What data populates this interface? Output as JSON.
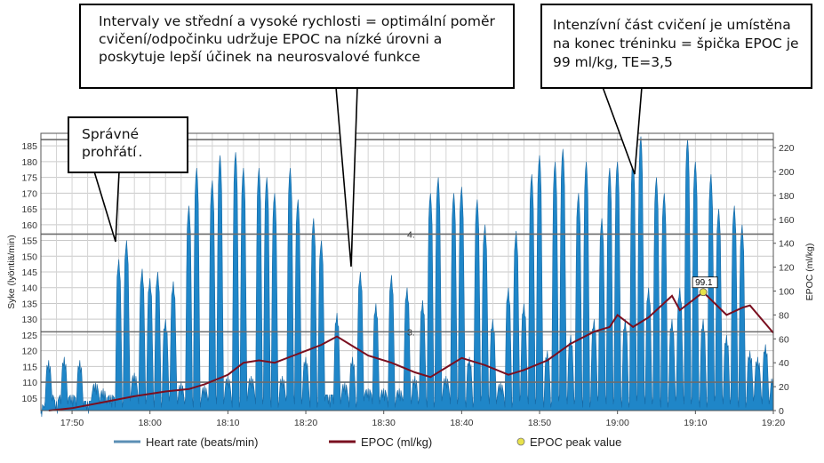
{
  "chart_data": {
    "type": "area",
    "x_ticks": [
      "17:50",
      "18:00",
      "18:10",
      "18:20",
      "18:30",
      "18:40",
      "18:50",
      "19:00",
      "19:10",
      "19:20"
    ],
    "x_range": [
      "17:46",
      "19:20"
    ],
    "y_left": {
      "label": "Syke (lyöntiä/min)",
      "ticks": [
        105,
        110,
        115,
        120,
        125,
        130,
        135,
        140,
        145,
        150,
        155,
        160,
        165,
        170,
        175,
        180,
        185
      ],
      "range": [
        101,
        189
      ]
    },
    "y_right": {
      "label": "EPOC (ml/kg)",
      "ticks": [
        0,
        20,
        40,
        60,
        80,
        100,
        120,
        140,
        160,
        180,
        200,
        220
      ],
      "range": [
        0,
        232
      ]
    },
    "zone_lines": [
      {
        "value": 110,
        "label": ""
      },
      {
        "value": 126,
        "label": "3."
      },
      {
        "value": 157,
        "label": "4."
      },
      {
        "value": 187,
        "label": ""
      }
    ],
    "series": [
      {
        "name": "Heart rate (beats/min)",
        "color": "#1f86c8",
        "axis": "left",
        "peaks": [
          [
            "17:46",
            103
          ],
          [
            "17:47",
            117
          ],
          [
            "17:48",
            104
          ],
          [
            "17:49",
            118
          ],
          [
            "17:50",
            106
          ],
          [
            "17:51",
            117
          ],
          [
            "17:52",
            104
          ],
          [
            "17:53",
            110
          ],
          [
            "17:54",
            108
          ],
          [
            "17:55",
            106
          ],
          [
            "17:56",
            149
          ],
          [
            "17:57",
            155
          ],
          [
            "17:58",
            113
          ],
          [
            "17:59",
            146
          ],
          [
            "18:00",
            143
          ],
          [
            "18:01",
            145
          ],
          [
            "18:02",
            130
          ],
          [
            "18:03",
            142
          ],
          [
            "18:04",
            110
          ],
          [
            "18:05",
            166
          ],
          [
            "18:06",
            178
          ],
          [
            "18:07",
            109
          ],
          [
            "18:08",
            174
          ],
          [
            "18:09",
            182
          ],
          [
            "18:10",
            112
          ],
          [
            "18:11",
            183
          ],
          [
            "18:12",
            178
          ],
          [
            "18:13",
            112
          ],
          [
            "18:14",
            178
          ],
          [
            "18:15",
            175
          ],
          [
            "18:16",
            170
          ],
          [
            "18:17",
            112
          ],
          [
            "18:18",
            178
          ],
          [
            "18:19",
            168
          ],
          [
            "18:20",
            118
          ],
          [
            "18:21",
            162
          ],
          [
            "18:22",
            155
          ],
          [
            "18:23",
            106
          ],
          [
            "18:24",
            132
          ],
          [
            "18:25",
            110
          ],
          [
            "18:26",
            118
          ],
          [
            "18:27",
            145
          ],
          [
            "18:28",
            108
          ],
          [
            "18:29",
            135
          ],
          [
            "18:30",
            108
          ],
          [
            "18:31",
            144
          ],
          [
            "18:32",
            108
          ],
          [
            "18:33",
            140
          ],
          [
            "18:34",
            112
          ],
          [
            "18:35",
            136
          ],
          [
            "18:36",
            170
          ],
          [
            "18:37",
            175
          ],
          [
            "18:38",
            112
          ],
          [
            "18:39",
            170
          ],
          [
            "18:40",
            172
          ],
          [
            "18:41",
            118
          ],
          [
            "18:42",
            168
          ],
          [
            "18:43",
            160
          ],
          [
            "18:44",
            130
          ],
          [
            "18:45",
            110
          ],
          [
            "18:46",
            140
          ],
          [
            "18:47",
            158
          ],
          [
            "18:48",
            135
          ],
          [
            "18:49",
            176
          ],
          [
            "18:50",
            182
          ],
          [
            "18:51",
            120
          ],
          [
            "18:52",
            180
          ],
          [
            "18:53",
            184
          ],
          [
            "18:54",
            125
          ],
          [
            "18:55",
            170
          ],
          [
            "18:56",
            180
          ],
          [
            "18:57",
            130
          ],
          [
            "18:58",
            162
          ],
          [
            "18:59",
            178
          ],
          [
            "19:00",
            180
          ],
          [
            "19:01",
            130
          ],
          [
            "19:02",
            182
          ],
          [
            "19:03",
            188
          ],
          [
            "19:04",
            140
          ],
          [
            "19:05",
            175
          ],
          [
            "19:06",
            170
          ],
          [
            "19:07",
            130
          ],
          [
            "19:08",
            140
          ],
          [
            "19:09",
            187
          ],
          [
            "19:10",
            180
          ],
          [
            "19:11",
            130
          ],
          [
            "19:12",
            176
          ],
          [
            "19:13",
            165
          ],
          [
            "19:14",
            125
          ],
          [
            "19:15",
            166
          ],
          [
            "19:16",
            160
          ],
          [
            "19:17",
            120
          ],
          [
            "19:18",
            118
          ],
          [
            "19:19",
            122
          ],
          [
            "19:20",
            112
          ]
        ]
      },
      {
        "name": "EPOC (ml/kg)",
        "color": "#7a0f1f",
        "axis": "right",
        "points": [
          [
            "17:47",
            0
          ],
          [
            "17:50",
            2
          ],
          [
            "17:54",
            7
          ],
          [
            "17:58",
            12
          ],
          [
            "18:02",
            16
          ],
          [
            "18:05",
            18
          ],
          [
            "18:07",
            22
          ],
          [
            "18:10",
            30
          ],
          [
            "18:12",
            40
          ],
          [
            "18:14",
            42
          ],
          [
            "18:16",
            40
          ],
          [
            "18:18",
            45
          ],
          [
            "18:20",
            50
          ],
          [
            "18:22",
            55
          ],
          [
            "18:24",
            62
          ],
          [
            "18:26",
            54
          ],
          [
            "18:28",
            46
          ],
          [
            "18:31",
            40
          ],
          [
            "18:34",
            32
          ],
          [
            "18:36",
            28
          ],
          [
            "18:38",
            36
          ],
          [
            "18:40",
            44
          ],
          [
            "18:43",
            38
          ],
          [
            "18:46",
            30
          ],
          [
            "18:48",
            34
          ],
          [
            "18:51",
            42
          ],
          [
            "18:54",
            56
          ],
          [
            "18:57",
            66
          ],
          [
            "18:59",
            70
          ],
          [
            "19:00",
            80
          ],
          [
            "19:02",
            70
          ],
          [
            "19:04",
            78
          ],
          [
            "19:05",
            84
          ],
          [
            "19:07",
            96
          ],
          [
            "19:08",
            84
          ],
          [
            "19:10",
            94
          ],
          [
            "19:11",
            99.1
          ],
          [
            "19:14",
            80
          ],
          [
            "19:16",
            86
          ],
          [
            "19:17",
            88
          ],
          [
            "19:20",
            65
          ]
        ]
      }
    ],
    "peak": {
      "name": "EPOC peak value",
      "x": "19:11",
      "value": 99.1,
      "label": "99.1",
      "color": "#e8e24a"
    },
    "legend": {
      "placement": "bottom",
      "items": [
        {
          "label": "Heart rate (beats/min)",
          "color": "#5b8fb5",
          "kind": "line"
        },
        {
          "label": "EPOC (ml/kg)",
          "color": "#7a0f1f",
          "kind": "line"
        },
        {
          "label": "EPOC peak value",
          "color": "#e8e24a",
          "kind": "dot"
        }
      ]
    },
    "grid": true
  },
  "callouts": {
    "warmup": "Správné prohřátí",
    "warmup_dot": ".",
    "intervals": "Intervaly ve střední a vysoké rychlosti = optimální poměr cvičení/odpočinku udržuje EPOC na nízké úrovni a poskytuje lepší účinek na neurosvalové funkce",
    "intense": "Intenzívní část cvičení je umístěna na konec tréninku = špička EPOC je 99 ml/kg, TE=3,5"
  }
}
